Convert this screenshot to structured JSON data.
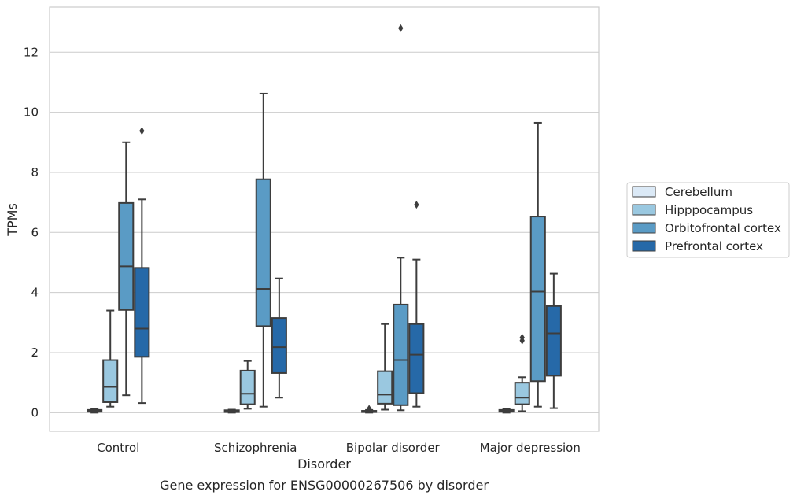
{
  "chart_data": {
    "type": "box",
    "caption": "Gene expression for ENSG00000267506 by disorder",
    "xlabel": "Disorder",
    "ylabel": "TPMs",
    "ylim": [
      -0.62,
      13.5
    ],
    "yticks": [
      0,
      2,
      4,
      6,
      8,
      10,
      12
    ],
    "grid": "horizontal",
    "legend_position": "right",
    "categories": [
      "Control",
      "Schizophrenia",
      "Bipolar disorder",
      "Major depression"
    ],
    "series": [
      {
        "name": "Cerebellum",
        "color": "#dbe9f6",
        "boxes": [
          {
            "whisker_low": 0.0,
            "q1": 0.03,
            "median": 0.06,
            "q3": 0.09,
            "whisker_high": 0.12,
            "outliers": []
          },
          {
            "whisker_low": 0.0,
            "q1": 0.02,
            "median": 0.05,
            "q3": 0.08,
            "whisker_high": 0.1,
            "outliers": []
          },
          {
            "whisker_low": 0.0,
            "q1": 0.02,
            "median": 0.04,
            "q3": 0.06,
            "whisker_high": 0.09,
            "outliers": [
              0.13
            ]
          },
          {
            "whisker_low": 0.0,
            "q1": 0.03,
            "median": 0.06,
            "q3": 0.09,
            "whisker_high": 0.12,
            "outliers": []
          }
        ]
      },
      {
        "name": "Hipppocampus",
        "color": "#9ac8e0",
        "boxes": [
          {
            "whisker_low": 0.2,
            "q1": 0.35,
            "median": 0.86,
            "q3": 1.75,
            "whisker_high": 3.4,
            "outliers": []
          },
          {
            "whisker_low": 0.13,
            "q1": 0.28,
            "median": 0.63,
            "q3": 1.4,
            "whisker_high": 1.72,
            "outliers": []
          },
          {
            "whisker_low": 0.1,
            "q1": 0.3,
            "median": 0.6,
            "q3": 1.38,
            "whisker_high": 2.95,
            "outliers": []
          },
          {
            "whisker_low": 0.05,
            "q1": 0.28,
            "median": 0.5,
            "q3": 1.0,
            "whisker_high": 1.18,
            "outliers": [
              2.4,
              2.5
            ]
          }
        ]
      },
      {
        "name": "Orbitofrontal cortex",
        "color": "#5a9bc5",
        "boxes": [
          {
            "whisker_low": 0.58,
            "q1": 3.42,
            "median": 4.87,
            "q3": 6.98,
            "whisker_high": 9.0,
            "outliers": []
          },
          {
            "whisker_low": 0.2,
            "q1": 2.88,
            "median": 4.12,
            "q3": 7.77,
            "whisker_high": 10.62,
            "outliers": []
          },
          {
            "whisker_low": 0.08,
            "q1": 0.25,
            "median": 1.75,
            "q3": 3.6,
            "whisker_high": 5.16,
            "outliers": [
              12.8
            ]
          },
          {
            "whisker_low": 0.2,
            "q1": 1.05,
            "median": 4.03,
            "q3": 6.53,
            "whisker_high": 9.65,
            "outliers": []
          }
        ]
      },
      {
        "name": "Prefrontal cortex",
        "color": "#2669a8",
        "boxes": [
          {
            "whisker_low": 0.32,
            "q1": 1.86,
            "median": 2.8,
            "q3": 4.82,
            "whisker_high": 7.1,
            "outliers": [
              9.38
            ]
          },
          {
            "whisker_low": 0.5,
            "q1": 1.32,
            "median": 2.18,
            "q3": 3.15,
            "whisker_high": 4.47,
            "outliers": []
          },
          {
            "whisker_low": 0.2,
            "q1": 0.65,
            "median": 1.93,
            "q3": 2.95,
            "whisker_high": 5.1,
            "outliers": [
              6.92
            ]
          },
          {
            "whisker_low": 0.15,
            "q1": 1.23,
            "median": 2.64,
            "q3": 3.55,
            "whisker_high": 4.63,
            "outliers": []
          }
        ]
      }
    ]
  }
}
